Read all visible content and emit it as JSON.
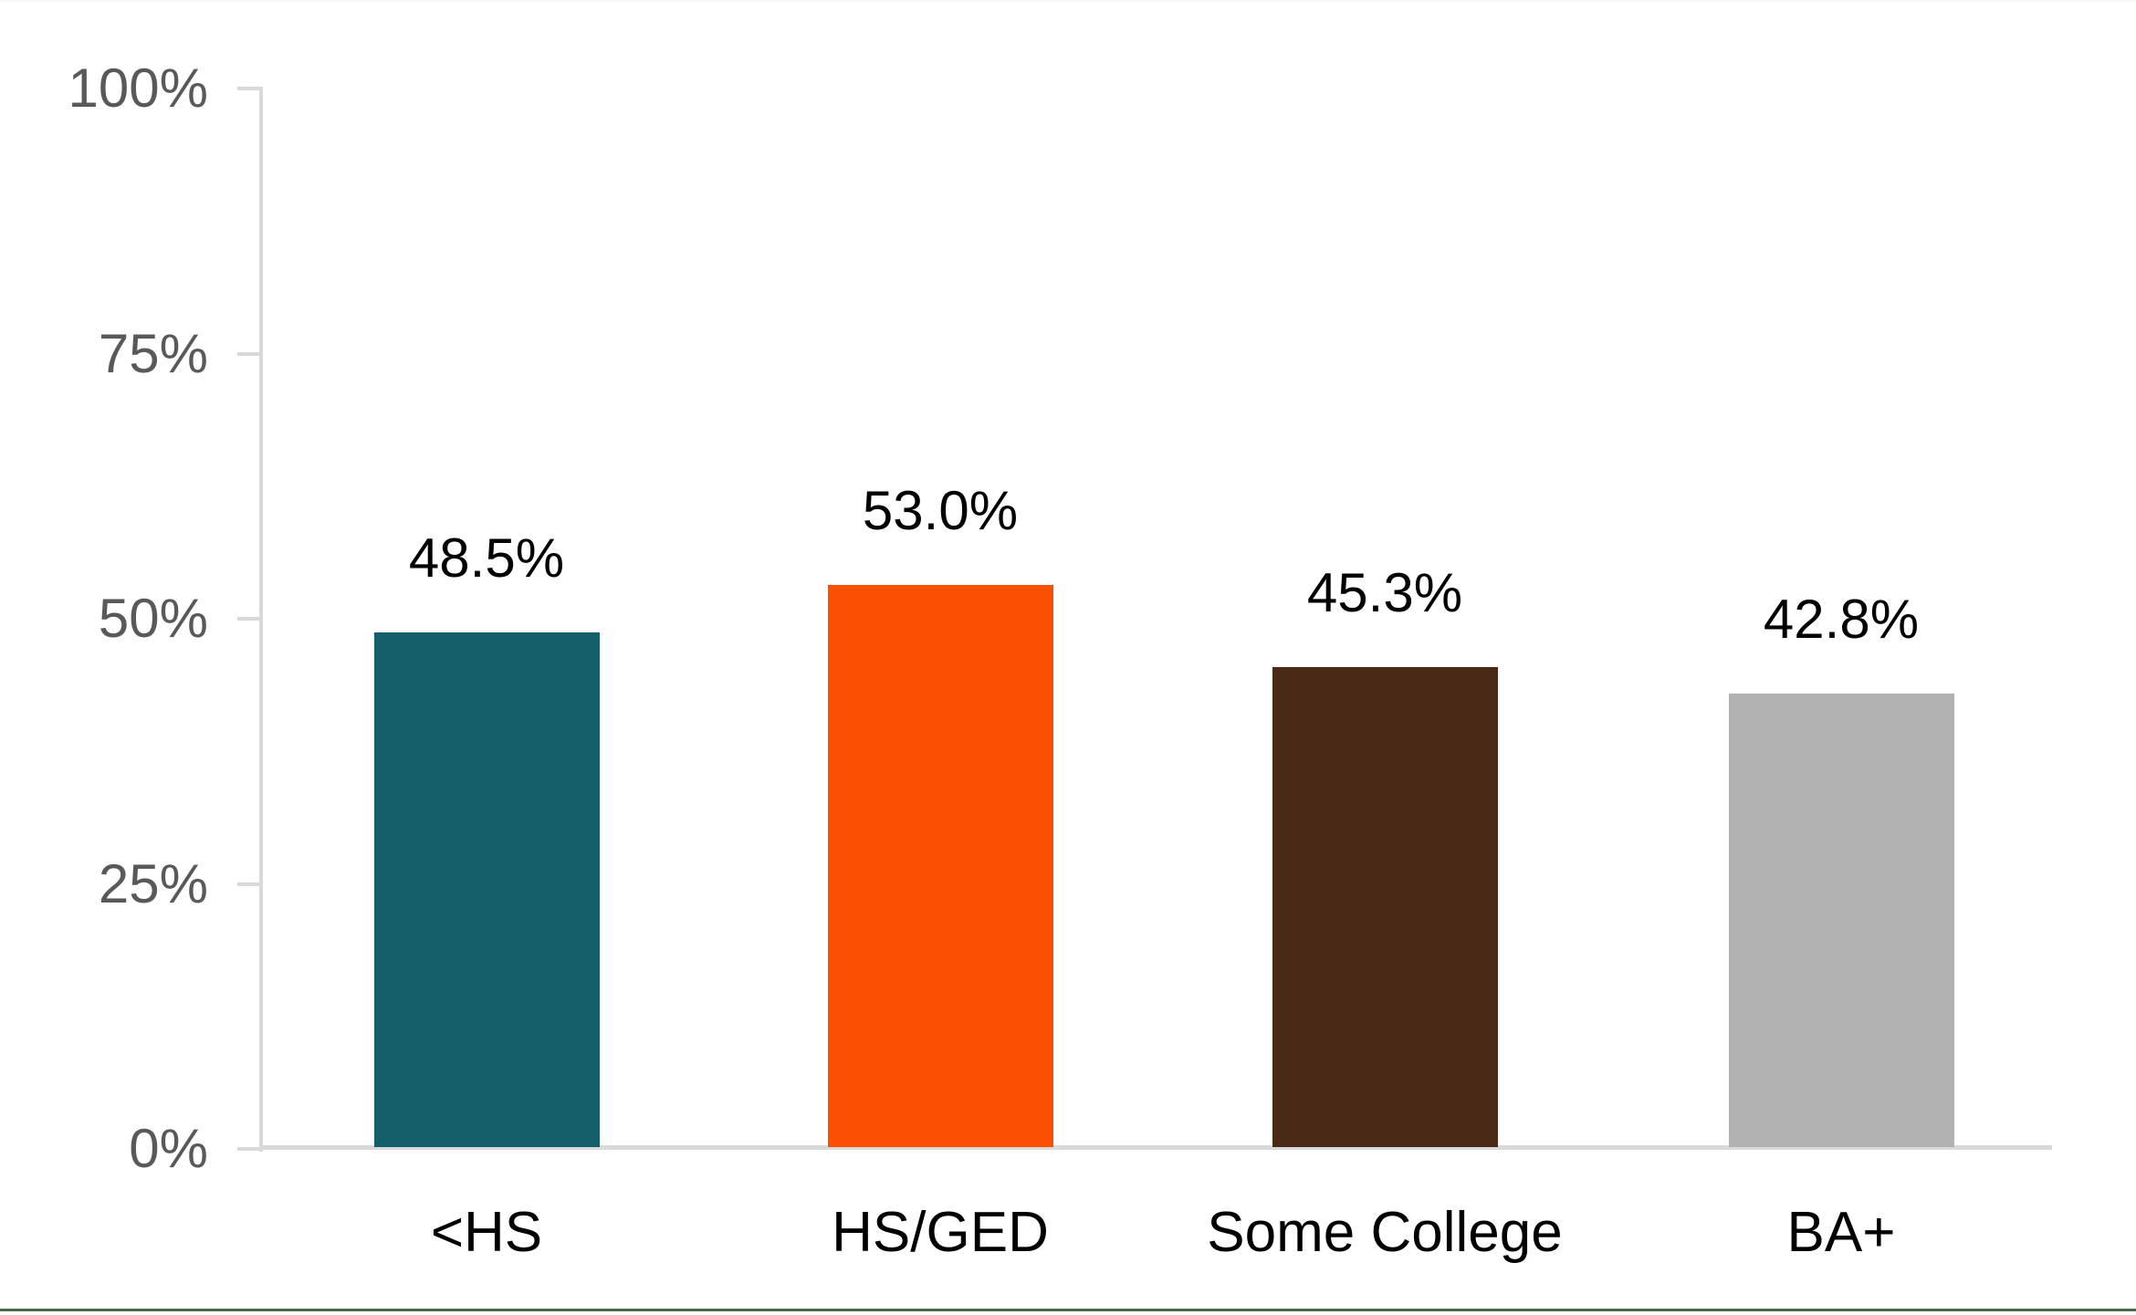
{
  "chart_data": {
    "type": "bar",
    "title": "",
    "xlabel": "",
    "ylabel": "",
    "categories": [
      "<HS",
      "HS/GED",
      "Some College",
      "BA+"
    ],
    "values": [
      48.5,
      53.0,
      45.3,
      42.8
    ],
    "data_labels": [
      "48.5%",
      "53.0%",
      "45.3%",
      "42.8%"
    ],
    "bar_colors": [
      "#155f6a",
      "#fb4f04",
      "#4b2917",
      "#b2b2b2"
    ],
    "ylim": [
      0,
      100
    ],
    "y_tick_values": [
      0,
      25,
      50,
      75,
      100
    ],
    "y_tick_labels": [
      "0%",
      "25%",
      "50%",
      "75%",
      "100%"
    ],
    "grid": false,
    "legend": "none",
    "axis_color": "#d9d9d9",
    "y_tick_label_color": "#595959",
    "data_label_color": "#000000",
    "category_label_color": "#000000",
    "bottom_accent_color": "#48694e"
  }
}
